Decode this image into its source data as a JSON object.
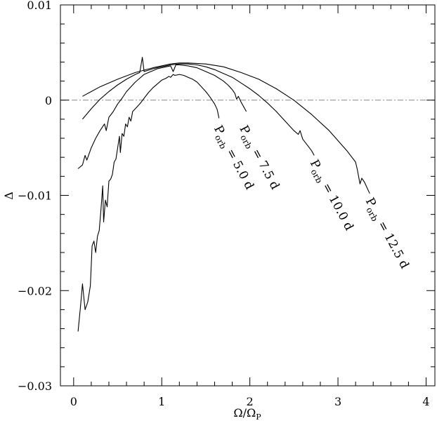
{
  "chart_data": {
    "type": "line",
    "title": "",
    "xlabel": "Ω/Ω",
    "xlabel_sub": "P",
    "ylabel": "Δ",
    "xlim": [
      -0.15,
      4.1
    ],
    "ylim": [
      -0.03,
      0.01
    ],
    "xticks_major": [
      0,
      1,
      2,
      3,
      4
    ],
    "xtick_labels": [
      "0",
      "1",
      "2",
      "3",
      "4"
    ],
    "xticks_minor_step": 0.2,
    "yticks_major": [
      0.01,
      0,
      -0.01,
      -0.02,
      -0.03
    ],
    "ytick_labels": [
      "0.01",
      "0",
      "−0.01",
      "−0.02",
      "−0.03"
    ],
    "yticks_minor_step": 0.002,
    "zero_line": 0,
    "grid": false,
    "legend": "none",
    "series": [
      {
        "label": "P",
        "label_sub": "orb",
        "label_rest": " = 5.0 d",
        "label_anchor": [
          1.64,
          -0.0022
        ],
        "points": [
          [
            0.05,
            -0.0243
          ],
          [
            0.08,
            -0.0215
          ],
          [
            0.1,
            -0.0193
          ],
          [
            0.13,
            -0.022
          ],
          [
            0.16,
            -0.0212
          ],
          [
            0.19,
            -0.0195
          ],
          [
            0.21,
            -0.0153
          ],
          [
            0.23,
            -0.0148
          ],
          [
            0.25,
            -0.016
          ],
          [
            0.27,
            -0.0143
          ],
          [
            0.29,
            -0.0137
          ],
          [
            0.31,
            -0.0115
          ],
          [
            0.33,
            -0.009
          ],
          [
            0.34,
            -0.0128
          ],
          [
            0.36,
            -0.0105
          ],
          [
            0.38,
            -0.0112
          ],
          [
            0.4,
            -0.0085
          ],
          [
            0.42,
            -0.0083
          ],
          [
            0.44,
            -0.0078
          ],
          [
            0.46,
            -0.0065
          ],
          [
            0.48,
            -0.0062
          ],
          [
            0.5,
            -0.005
          ],
          [
            0.52,
            -0.0038
          ],
          [
            0.53,
            -0.0055
          ],
          [
            0.55,
            -0.0035
          ],
          [
            0.57,
            -0.0038
          ],
          [
            0.59,
            -0.0025
          ],
          [
            0.61,
            -0.0028
          ],
          [
            0.63,
            -0.0018
          ],
          [
            0.65,
            -0.0022
          ],
          [
            0.67,
            -0.0012
          ],
          [
            0.7,
            -0.0009
          ],
          [
            0.73,
            -0.0006
          ],
          [
            0.76,
            -0.0003
          ],
          [
            0.8,
            0.0002
          ],
          [
            0.85,
            0.0008
          ],
          [
            0.9,
            0.0013
          ],
          [
            0.95,
            0.0017
          ],
          [
            1.0,
            0.0021
          ],
          [
            1.05,
            0.0023
          ],
          [
            1.08,
            0.0025
          ],
          [
            1.1,
            0.0024
          ],
          [
            1.13,
            0.0027
          ],
          [
            1.15,
            0.0026
          ],
          [
            1.2,
            0.0027
          ],
          [
            1.25,
            0.0026
          ],
          [
            1.3,
            0.0024
          ],
          [
            1.35,
            0.0022
          ],
          [
            1.4,
            0.0019
          ],
          [
            1.45,
            0.0014
          ],
          [
            1.5,
            0.0009
          ],
          [
            1.55,
            0.0003
          ],
          [
            1.6,
            -0.0004
          ],
          [
            1.63,
            -0.001
          ],
          [
            1.65,
            -0.0019
          ]
        ]
      },
      {
        "label": "P",
        "label_sub": "orb",
        "label_rest": " = 7.5 d",
        "label_anchor": [
          1.93,
          -0.0022
        ],
        "points": [
          [
            0.05,
            -0.0072
          ],
          [
            0.1,
            -0.0068
          ],
          [
            0.13,
            -0.0058
          ],
          [
            0.15,
            -0.0063
          ],
          [
            0.2,
            -0.005
          ],
          [
            0.25,
            -0.004
          ],
          [
            0.3,
            -0.0032
          ],
          [
            0.35,
            -0.0025
          ],
          [
            0.37,
            -0.0032
          ],
          [
            0.4,
            -0.0018
          ],
          [
            0.45,
            -0.0012
          ],
          [
            0.5,
            -0.0004
          ],
          [
            0.55,
            0.0002
          ],
          [
            0.6,
            0.0009
          ],
          [
            0.65,
            0.0014
          ],
          [
            0.7,
            0.0019
          ],
          [
            0.75,
            0.0023
          ],
          [
            0.8,
            0.0027
          ],
          [
            0.85,
            0.0029
          ],
          [
            0.9,
            0.0031
          ],
          [
            0.95,
            0.0033
          ],
          [
            1.0,
            0.0034
          ],
          [
            1.05,
            0.0035
          ],
          [
            1.1,
            0.0036
          ],
          [
            1.13,
            0.003
          ],
          [
            1.16,
            0.0037
          ],
          [
            1.2,
            0.0037
          ],
          [
            1.3,
            0.0036
          ],
          [
            1.4,
            0.0034
          ],
          [
            1.5,
            0.003
          ],
          [
            1.6,
            0.0026
          ],
          [
            1.7,
            0.002
          ],
          [
            1.75,
            0.0016
          ],
          [
            1.8,
            0.0011
          ],
          [
            1.83,
            0.0007
          ],
          [
            1.85,
            0.0001
          ],
          [
            1.87,
            0.0004
          ],
          [
            1.9,
            -0.0002
          ],
          [
            1.93,
            -0.0007
          ],
          [
            1.96,
            -0.0012
          ]
        ]
      },
      {
        "label": "P",
        "label_sub": "orb",
        "label_rest": " = 10.0 d",
        "label_anchor": [
          2.73,
          -0.0058
        ],
        "points": [
          [
            0.1,
            -0.002
          ],
          [
            0.2,
            -0.0009
          ],
          [
            0.3,
            0.0001
          ],
          [
            0.4,
            0.0009
          ],
          [
            0.5,
            0.0016
          ],
          [
            0.6,
            0.0022
          ],
          [
            0.7,
            0.0027
          ],
          [
            0.75,
            0.0029
          ],
          [
            0.78,
            0.0045
          ],
          [
            0.8,
            0.003
          ],
          [
            0.9,
            0.0033
          ],
          [
            1.0,
            0.0035
          ],
          [
            1.1,
            0.0037
          ],
          [
            1.2,
            0.0038
          ],
          [
            1.3,
            0.0038
          ],
          [
            1.4,
            0.0037
          ],
          [
            1.5,
            0.0035
          ],
          [
            1.6,
            0.0032
          ],
          [
            1.7,
            0.0028
          ],
          [
            1.8,
            0.0024
          ],
          [
            1.9,
            0.0018
          ],
          [
            2.0,
            0.0012
          ],
          [
            2.1,
            0.0005
          ],
          [
            2.2,
            -0.0003
          ],
          [
            2.3,
            -0.0012
          ],
          [
            2.4,
            -0.0022
          ],
          [
            2.5,
            -0.0032
          ],
          [
            2.55,
            -0.0036
          ],
          [
            2.57,
            -0.0032
          ],
          [
            2.6,
            -0.0041
          ],
          [
            2.65,
            -0.0047
          ],
          [
            2.7,
            -0.0053
          ],
          [
            2.73,
            -0.0058
          ]
        ]
      },
      {
        "label": "P",
        "label_sub": "orb",
        "label_rest": " = 12.5 d",
        "label_anchor": [
          3.36,
          -0.0098
        ],
        "points": [
          [
            0.1,
            0.0004
          ],
          [
            0.3,
            0.0014
          ],
          [
            0.5,
            0.0022
          ],
          [
            0.7,
            0.0029
          ],
          [
            0.9,
            0.0034
          ],
          [
            1.1,
            0.0038
          ],
          [
            1.2,
            0.0039
          ],
          [
            1.3,
            0.0039
          ],
          [
            1.5,
            0.0038
          ],
          [
            1.7,
            0.0035
          ],
          [
            1.9,
            0.0029
          ],
          [
            2.1,
            0.0022
          ],
          [
            2.3,
            0.0012
          ],
          [
            2.5,
            0.0
          ],
          [
            2.7,
            -0.0015
          ],
          [
            2.9,
            -0.0032
          ],
          [
            3.1,
            -0.0053
          ],
          [
            3.2,
            -0.0065
          ],
          [
            3.22,
            -0.0073
          ],
          [
            3.25,
            -0.0088
          ],
          [
            3.27,
            -0.0082
          ],
          [
            3.3,
            -0.0086
          ],
          [
            3.33,
            -0.0092
          ],
          [
            3.36,
            -0.0098
          ]
        ]
      }
    ]
  }
}
